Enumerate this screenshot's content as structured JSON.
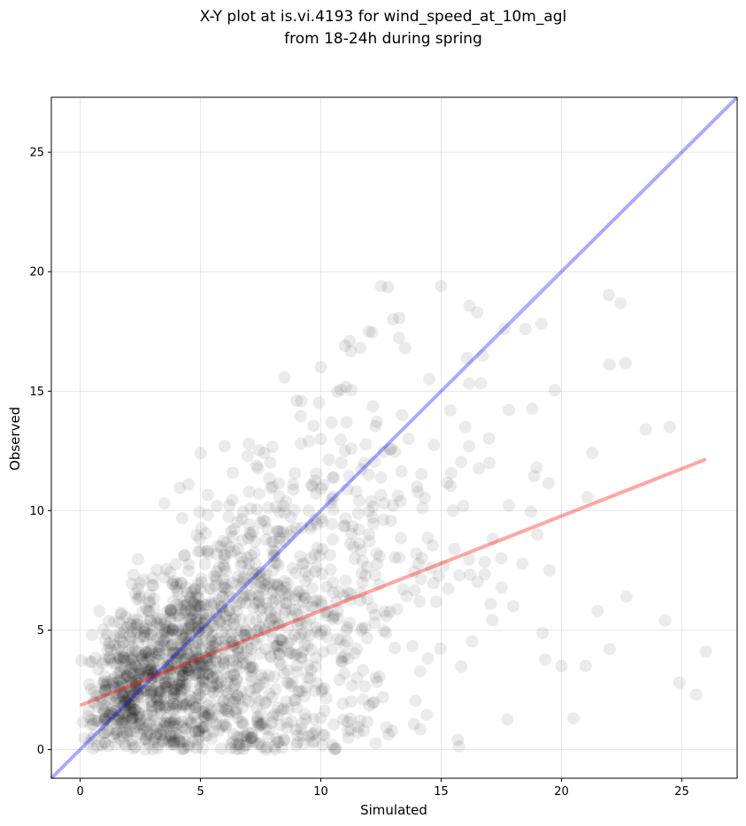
{
  "chart_data": {
    "type": "scatter",
    "title": "X-Y plot at is.vi.4193 for wind_speed_at_10m_agl",
    "subtitle": "from 18-24h during spring",
    "xlabel": "Simulated",
    "ylabel": "Observed",
    "xlim": [
      -1.2,
      27.3
    ],
    "ylim": [
      -1.2,
      27.3
    ],
    "xticks": [
      0,
      5,
      10,
      15,
      20,
      25
    ],
    "yticks": [
      0,
      5,
      10,
      15,
      20,
      25
    ],
    "grid": true,
    "colors": {
      "points": "#000000",
      "identity_line": "#0000ff",
      "regression_line": "#ff0000",
      "grid": "#b0b0b0"
    },
    "points_sample": [
      [
        1.0,
        1.2
      ],
      [
        2.0,
        0.8
      ],
      [
        2.5,
        2.2
      ],
      [
        3.0,
        3.5
      ],
      [
        3.5,
        1.0
      ],
      [
        4.0,
        2.5
      ],
      [
        4.5,
        4.0
      ],
      [
        5.0,
        6.0
      ],
      [
        5.5,
        3.0
      ],
      [
        6.0,
        8.0
      ],
      [
        6.5,
        5.0
      ],
      [
        7.0,
        2.0
      ],
      [
        7.5,
        9.5
      ],
      [
        8.0,
        11.0
      ],
      [
        8.5,
        6.5
      ],
      [
        9.0,
        4.0
      ],
      [
        9.5,
        10.0
      ],
      [
        10.0,
        13.0
      ],
      [
        10.5,
        7.0
      ],
      [
        11.0,
        12.5
      ],
      [
        11.5,
        3.0
      ],
      [
        12.0,
        9.0
      ],
      [
        12.5,
        19.4
      ],
      [
        13.0,
        18.0
      ],
      [
        13.5,
        16.8
      ],
      [
        14.0,
        11.0
      ],
      [
        14.5,
        15.5
      ],
      [
        15.0,
        19.4
      ],
      [
        15.5,
        10.0
      ],
      [
        16.0,
        13.5
      ],
      [
        16.5,
        18.3
      ],
      [
        17.0,
        12.0
      ],
      [
        17.5,
        8.0
      ],
      [
        18.0,
        6.0
      ],
      [
        18.5,
        17.6
      ],
      [
        19.0,
        9.0
      ],
      [
        19.5,
        7.5
      ],
      [
        20.0,
        3.5
      ],
      [
        20.5,
        1.3
      ],
      [
        21.0,
        3.5
      ],
      [
        21.5,
        5.8
      ],
      [
        22.0,
        4.2
      ],
      [
        22.7,
        6.4
      ],
      [
        23.5,
        13.4
      ],
      [
        24.3,
        5.4
      ],
      [
        24.5,
        13.5
      ],
      [
        24.9,
        2.8
      ],
      [
        25.6,
        2.3
      ],
      [
        26.0,
        4.1
      ],
      [
        5.0,
        12.4
      ],
      [
        6.0,
        12.7
      ],
      [
        7.0,
        12.8
      ],
      [
        0.5,
        4.8
      ],
      [
        0.8,
        5.8
      ],
      [
        3.5,
        10.3
      ],
      [
        4.5,
        11.1
      ],
      [
        9.0,
        14.6
      ],
      [
        10.0,
        16.0
      ],
      [
        11.0,
        16.9
      ],
      [
        12.0,
        17.5
      ]
    ],
    "identity_line": {
      "x": [
        -1.2,
        27.3
      ],
      "y": [
        -1.2,
        27.3
      ]
    },
    "regression_line": {
      "x": [
        0.0,
        26.0
      ],
      "y": [
        1.85,
        12.15
      ]
    }
  }
}
